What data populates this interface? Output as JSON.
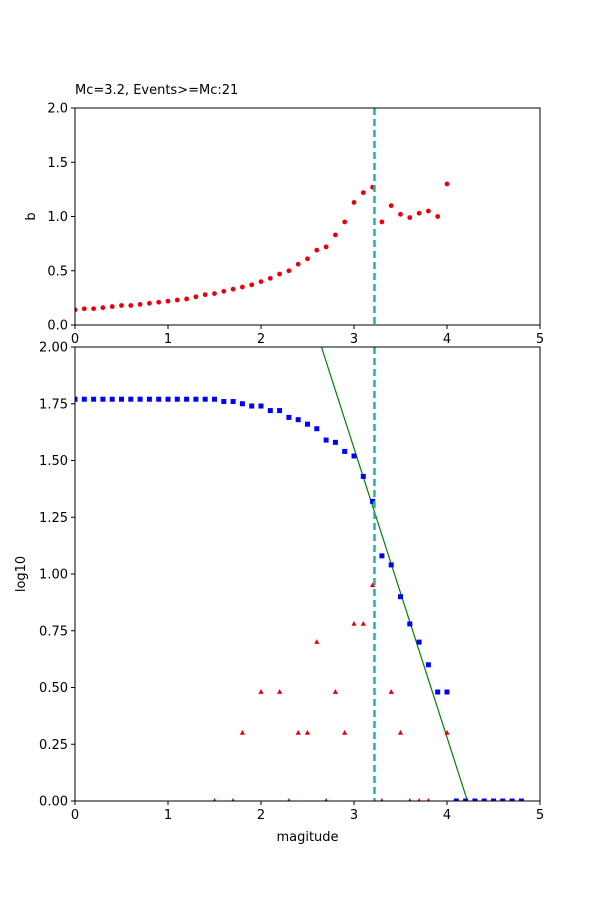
{
  "chart_data": [
    {
      "type": "scatter",
      "title": "Mc=3.2, Events>=Mc:21",
      "xlabel": "",
      "ylabel": "b",
      "xlim": [
        0,
        5
      ],
      "ylim": [
        0,
        2.0
      ],
      "xticks": [
        "0",
        "1",
        "2",
        "3",
        "4",
        "5"
      ],
      "yticks": [
        "0.0",
        "0.5",
        "1.0",
        "1.5",
        "2.0"
      ],
      "vline": {
        "x": 3.22,
        "color": "#20b2aa",
        "style": "dashed"
      },
      "series": [
        {
          "marker": "circle",
          "color": "#e8000b",
          "points": [
            [
              0.0,
              0.14
            ],
            [
              0.1,
              0.15
            ],
            [
              0.2,
              0.15
            ],
            [
              0.3,
              0.16
            ],
            [
              0.4,
              0.17
            ],
            [
              0.5,
              0.18
            ],
            [
              0.6,
              0.18
            ],
            [
              0.7,
              0.19
            ],
            [
              0.8,
              0.2
            ],
            [
              0.9,
              0.21
            ],
            [
              1.0,
              0.22
            ],
            [
              1.1,
              0.23
            ],
            [
              1.2,
              0.24
            ],
            [
              1.3,
              0.26
            ],
            [
              1.4,
              0.28
            ],
            [
              1.5,
              0.29
            ],
            [
              1.6,
              0.31
            ],
            [
              1.7,
              0.33
            ],
            [
              1.8,
              0.35
            ],
            [
              1.9,
              0.37
            ],
            [
              2.0,
              0.4
            ],
            [
              2.1,
              0.43
            ],
            [
              2.2,
              0.47
            ],
            [
              2.3,
              0.5
            ],
            [
              2.4,
              0.56
            ],
            [
              2.5,
              0.61
            ],
            [
              2.6,
              0.69
            ],
            [
              2.7,
              0.72
            ],
            [
              2.8,
              0.83
            ],
            [
              2.9,
              0.95
            ],
            [
              3.0,
              1.13
            ],
            [
              3.1,
              1.22
            ],
            [
              3.2,
              1.27
            ],
            [
              3.3,
              0.95
            ],
            [
              3.4,
              1.1
            ],
            [
              3.5,
              1.02
            ],
            [
              3.6,
              0.99
            ],
            [
              3.7,
              1.03
            ],
            [
              3.8,
              1.05
            ],
            [
              3.9,
              1.0
            ],
            [
              4.0,
              1.3
            ]
          ]
        }
      ]
    },
    {
      "type": "scatter",
      "title": "",
      "xlabel": "magitude",
      "ylabel": "log10",
      "xlim": [
        0,
        5
      ],
      "ylim": [
        0,
        2.0
      ],
      "xticks": [
        "0",
        "1",
        "2",
        "3",
        "4",
        "5"
      ],
      "yticks": [
        "0.00",
        "0.25",
        "0.50",
        "0.75",
        "1.00",
        "1.25",
        "1.50",
        "1.75",
        "2.00"
      ],
      "vline": {
        "x": 3.22,
        "color": "#20b2aa",
        "style": "dashed"
      },
      "fit_line": {
        "color": "#008000",
        "points": [
          [
            2.65,
            2.0
          ],
          [
            4.22,
            0.0
          ]
        ]
      },
      "series": [
        {
          "marker": "square",
          "color": "#0000ff",
          "points": [
            [
              0.0,
              1.77
            ],
            [
              0.1,
              1.77
            ],
            [
              0.2,
              1.77
            ],
            [
              0.3,
              1.77
            ],
            [
              0.4,
              1.77
            ],
            [
              0.5,
              1.77
            ],
            [
              0.6,
              1.77
            ],
            [
              0.7,
              1.77
            ],
            [
              0.8,
              1.77
            ],
            [
              0.9,
              1.77
            ],
            [
              1.0,
              1.77
            ],
            [
              1.1,
              1.77
            ],
            [
              1.2,
              1.77
            ],
            [
              1.3,
              1.77
            ],
            [
              1.4,
              1.77
            ],
            [
              1.5,
              1.77
            ],
            [
              1.6,
              1.76
            ],
            [
              1.7,
              1.76
            ],
            [
              1.8,
              1.75
            ],
            [
              1.9,
              1.74
            ],
            [
              2.0,
              1.74
            ],
            [
              2.1,
              1.72
            ],
            [
              2.2,
              1.72
            ],
            [
              2.3,
              1.69
            ],
            [
              2.4,
              1.68
            ],
            [
              2.5,
              1.66
            ],
            [
              2.6,
              1.64
            ],
            [
              2.7,
              1.59
            ],
            [
              2.8,
              1.58
            ],
            [
              2.9,
              1.54
            ],
            [
              3.0,
              1.52
            ],
            [
              3.1,
              1.43
            ],
            [
              3.2,
              1.32
            ],
            [
              3.3,
              1.08
            ],
            [
              3.4,
              1.04
            ],
            [
              3.5,
              0.9
            ],
            [
              3.6,
              0.78
            ],
            [
              3.7,
              0.7
            ],
            [
              3.8,
              0.6
            ],
            [
              3.9,
              0.48
            ],
            [
              4.0,
              0.48
            ],
            [
              4.1,
              0.0
            ],
            [
              4.2,
              0.0
            ],
            [
              4.3,
              0.0
            ],
            [
              4.4,
              0.0
            ],
            [
              4.5,
              0.0
            ],
            [
              4.6,
              0.0
            ],
            [
              4.7,
              0.0
            ],
            [
              4.8,
              0.0
            ]
          ]
        },
        {
          "marker": "triangle",
          "color": "#e8000b",
          "points": [
            [
              1.5,
              0.0
            ],
            [
              1.7,
              0.0
            ],
            [
              1.8,
              0.3
            ],
            [
              2.0,
              0.48
            ],
            [
              2.2,
              0.48
            ],
            [
              2.3,
              0.0
            ],
            [
              2.4,
              0.3
            ],
            [
              2.5,
              0.3
            ],
            [
              2.6,
              0.7
            ],
            [
              2.7,
              0.0
            ],
            [
              2.8,
              0.48
            ],
            [
              2.9,
              0.3
            ],
            [
              3.0,
              0.78
            ],
            [
              3.1,
              0.78
            ],
            [
              3.2,
              0.95
            ],
            [
              3.3,
              0.0
            ],
            [
              3.4,
              0.48
            ],
            [
              3.5,
              0.3
            ],
            [
              3.6,
              0.0
            ],
            [
              3.7,
              0.0
            ],
            [
              3.8,
              0.0
            ],
            [
              4.0,
              0.3
            ]
          ]
        }
      ]
    }
  ]
}
